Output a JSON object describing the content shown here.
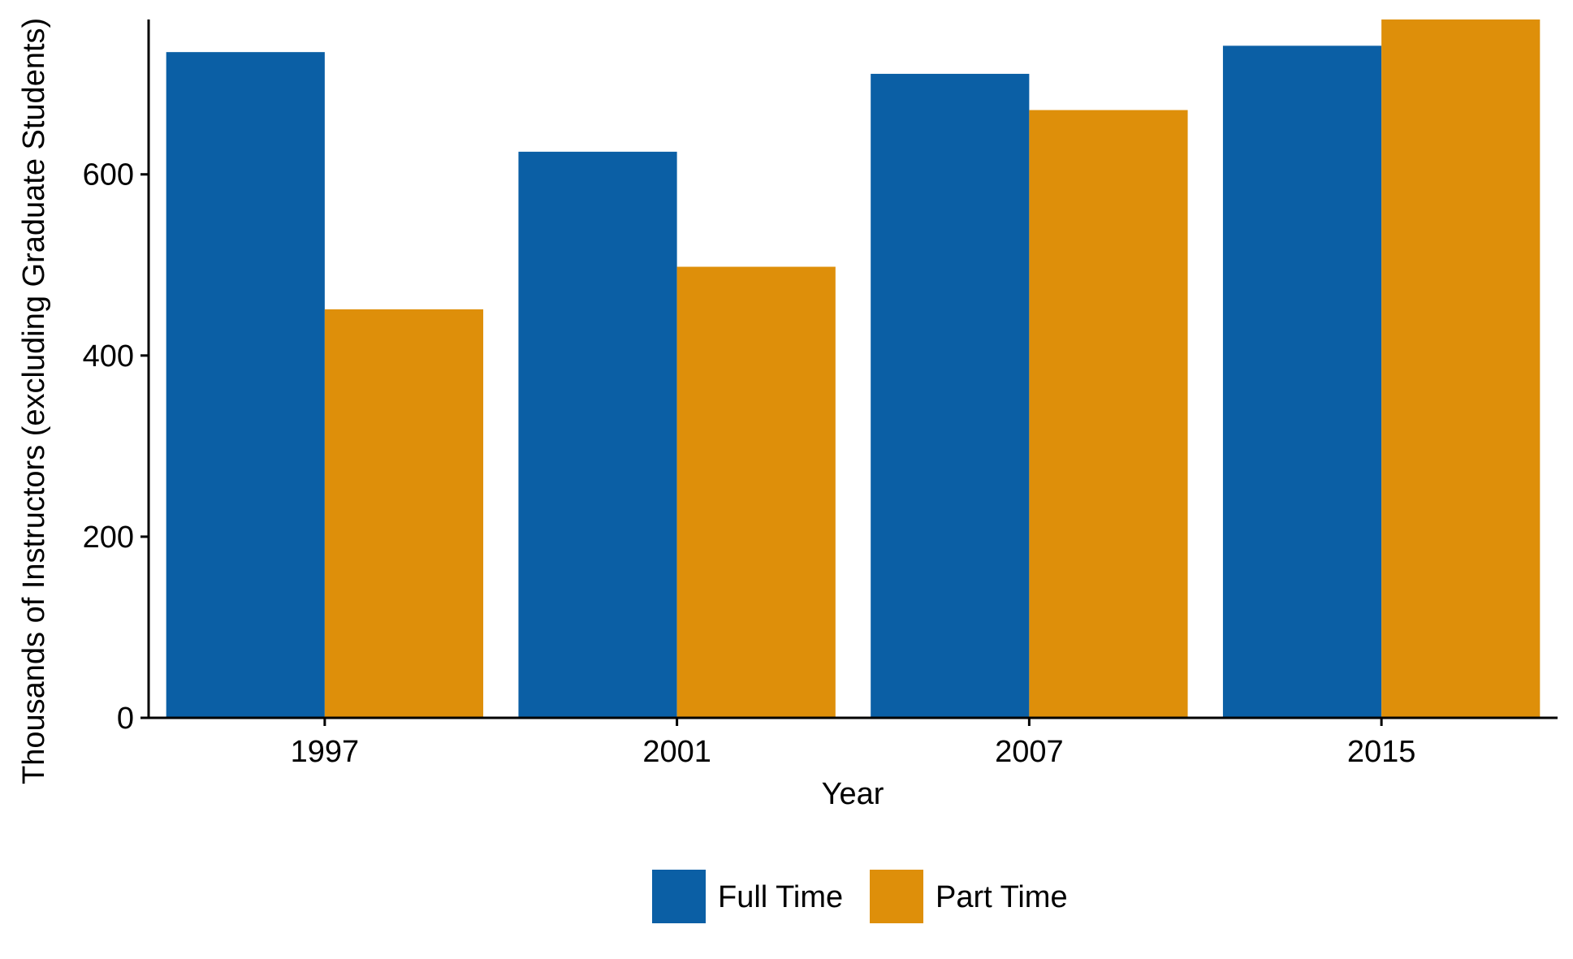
{
  "chart_data": {
    "type": "bar",
    "title": "",
    "xlabel": "Year",
    "ylabel": "Thousands of Instructors (excluding Graduate Students)",
    "categories": [
      "1997",
      "2001",
      "2007",
      "2015"
    ],
    "series": [
      {
        "name": "Full Time",
        "color": "#0b5fa5",
        "values": [
          735,
          625,
          711,
          742
        ]
      },
      {
        "name": "Part Time",
        "color": "#de8f0a",
        "values": [
          451,
          498,
          671,
          771
        ]
      }
    ],
    "yticks": [
      0,
      200,
      400,
      600
    ],
    "ylim": [
      0,
      771
    ],
    "grid": false,
    "legend_position": "bottom"
  }
}
